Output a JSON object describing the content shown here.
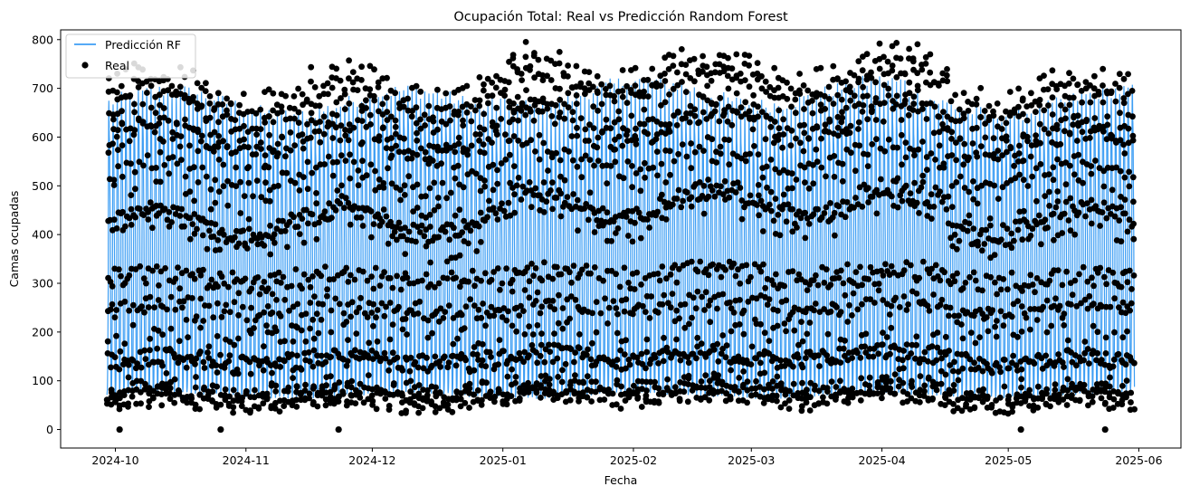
{
  "chart_data": {
    "type": "line",
    "title": "Ocupación Total: Real vs Predicción Random Forest",
    "xlabel": "Fecha",
    "ylabel": "Camas ocupadas",
    "x_start": "2024-09-29",
    "x_end": "2025-05-31",
    "xlim": [
      "2024-09-18",
      "2025-06-11"
    ],
    "ylim": [
      -38,
      820
    ],
    "x_ticks": [
      "2024-10",
      "2024-11",
      "2024-12",
      "2025-01",
      "2025-02",
      "2025-03",
      "2025-04",
      "2025-05",
      "2025-06"
    ],
    "y_ticks": [
      0,
      100,
      200,
      300,
      400,
      500,
      600,
      700,
      800
    ],
    "grid": false,
    "legend_position": "top-left",
    "series": [
      {
        "name": "Predicción RF",
        "kind": "line",
        "color": "#3d9ef4",
        "daily_profile": [
          70,
          75,
          80,
          95,
          130,
          180,
          240,
          290,
          410,
          560,
          650,
          670,
          640,
          600,
          590,
          570,
          510,
          470,
          420,
          380,
          300,
          220,
          130,
          80
        ]
      },
      {
        "name": "Real",
        "kind": "scatter",
        "color": "#000000",
        "daily_profile": [
          60,
          65,
          75,
          90,
          140,
          190,
          250,
          300,
          420,
          580,
          680,
          710,
          660,
          620,
          600,
          580,
          520,
          480,
          430,
          390,
          310,
          230,
          140,
          55
        ],
        "zero_points": [
          "2024-10-02",
          "2024-10-26",
          "2024-11-23",
          "2025-05-04",
          "2025-05-24"
        ]
      }
    ]
  }
}
